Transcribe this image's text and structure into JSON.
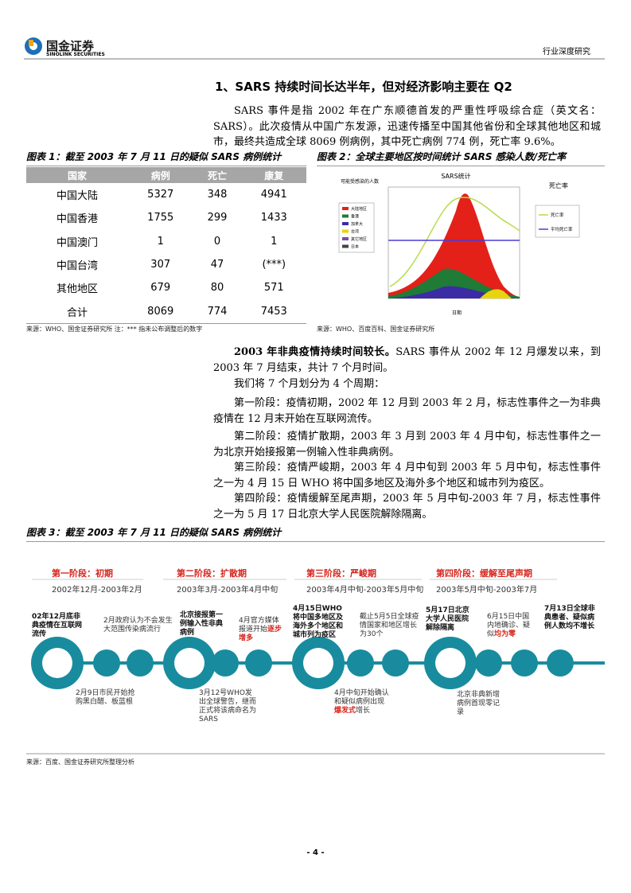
{
  "header": {
    "logo": "国金证券",
    "logo_en": "SINOLINK SECURITIES",
    "section": "行业深度研究"
  },
  "heading": "1、SARS 持续时间长达半年，但对经济影响主要在 Q2",
  "intro": "SARS 事件是指 2002 年在广东顺德首发的严重性呼吸综合症（英文名：SARS）。此次疫情从中国广东发源，迅速传播至中国其他省份和全球其他地区和城市，最终共造成全球 8069 例病例，其中死亡病例 774 例，死亡率 9.6%。",
  "figure1": {
    "title": "图表 1：截至 2003 年 7 月 11 日的疑似 SARS 病例统计",
    "table": {
      "header": [
        "国家",
        "病例",
        "死亡",
        "康复"
      ],
      "rows": [
        [
          "中国大陆",
          "5327",
          "348",
          "4941"
        ],
        [
          "中国香港",
          "1755",
          "299",
          "1433"
        ],
        [
          "中国澳门",
          "1",
          "0",
          "1"
        ],
        [
          "中国台湾",
          "307",
          "47",
          "(***)"
        ],
        [
          "其他地区",
          "679",
          "80",
          "571"
        ],
        [
          "合计",
          "8069",
          "774",
          "7453"
        ]
      ]
    },
    "source": "来源：WHO、国金证券研究所 注：*** 指未公布调整后的数字"
  },
  "figure2": {
    "title": "图表 2：全球主要地区按时间统计 SARS 感染人数/死亡率",
    "chart_title": "SARS统计",
    "y_label": "可能受感染的人数",
    "y2_label": "死亡率",
    "x_label": "日期",
    "legend": [
      "大陆地区",
      "香港",
      "加拿大",
      "台湾",
      "其它地区",
      "日本"
    ],
    "legend2": [
      "死亡率",
      "平均死亡率"
    ],
    "source": "来源：WHO、百度百科、国金证券研究所"
  },
  "paragraphs": [
    {
      "lead": "2003 年非典疫情持续时间较长。",
      "text": "SARS 事件从 2002 年 12 月爆发以来，到 2003 年 7 月结束，共计 7 个月时间。"
    },
    {
      "text": "我们将 7 个月划分为 4 个周期："
    },
    {
      "text": "第一阶段：疫情初期，2002 年 12 月到 2003 年 2 月，标志性事件之一为非典疫情在 12 月末开始在互联网流传。"
    },
    {
      "text": "第二阶段：疫情扩散期，2003 年 3 月到 2003 年 4 月中旬，标志性事件之一为北京开始接报第一例输入性非典病例。"
    },
    {
      "text": "第三阶段：疫情严峻期，2003 年 4 月中旬到 2003 年 5 月中旬，标志性事件之一为 4 月 15 日 WHO 将中国多地区及海外多个地区和城市列为疫区。"
    },
    {
      "text": "第四阶段：疫情缓解至尾声期，2003 年 5 月中旬-2003 年 7 月，标志性事件之一为 5 月 17 日北京大学人民医院解除隔离。"
    }
  ],
  "figure3": {
    "title": "图表 3：截至 2003 年 7 月 11 日的疑似 SARS 病例统计",
    "stages": [
      {
        "title": "第一阶段：初期",
        "period": "2002年12月-2003年2月"
      },
      {
        "title": "第二阶段：扩散期",
        "period": "2003年3月-2003年4月中旬"
      },
      {
        "title": "第三阶段：严峻期",
        "period": "2003年4月中旬-2003年5月中旬"
      },
      {
        "title": "第四阶段：缓解至尾声期",
        "period": "2003年5月中旬-2003年7月"
      }
    ],
    "events": [
      {
        "text": "02年12月底非典疫情在互联网流传"
      },
      {
        "text": "2月政府认为不会发生大范围传染病流行"
      },
      {
        "text": "北京接报第一例输入性非典病例"
      },
      {
        "text": "4月官方媒体报道开始",
        "emphasis": "逐步增多"
      },
      {
        "text": "4月15日WHO将中国多地区及海外多个地区和城市列为疫区"
      },
      {
        "text": "截止5月5日全球疫情国家和地区增长为30个"
      },
      {
        "text": "5月17日北京大学人民医院解除隔离"
      },
      {
        "text": "6月15日中国内地确诊、疑似",
        "emphasis": "均为零"
      },
      {
        "text": "7月13日全球非典患者、疑似病例人数均不增长"
      },
      {
        "text": "2月9日市民开始抢购黑白醋、板蓝根"
      },
      {
        "text": "3月12号WHO发出全球警告，继而正式将该病命名为SARS"
      },
      {
        "text": "4月中旬开始确认和疑似病例出现",
        "emphasis": "爆发式",
        "tail": "增长"
      },
      {
        "text": "北京非典新增病例首现零记录"
      }
    ],
    "source": "来源：百度、国金证券研究所整理分析"
  },
  "page_number": "- 4 -"
}
